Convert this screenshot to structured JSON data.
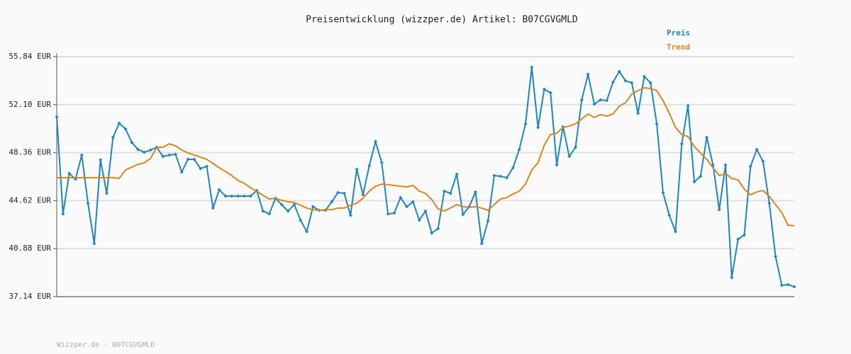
{
  "chart_data": {
    "type": "line",
    "title": "Preisentwicklung (wizzper.de) Artikel: B07CGVGMLD",
    "footer": "Wizzper.de - B07CGVGMLD",
    "ylim": [
      37.14,
      55.84
    ],
    "yticks": [
      {
        "value": 37.14,
        "label": "37.14 EUR"
      },
      {
        "value": 40.88,
        "label": "40.88 EUR"
      },
      {
        "value": 44.62,
        "label": "44.62 EUR"
      },
      {
        "value": 48.36,
        "label": "48.36 EUR"
      },
      {
        "value": 52.1,
        "label": "52.10 EUR"
      },
      {
        "value": 55.84,
        "label": "55.84 EUR"
      }
    ],
    "grid": true,
    "legend": "top-right",
    "series": [
      {
        "name": "Preis",
        "color": "#1f85c2",
        "markers": true,
        "values": [
          51.15,
          43.59,
          46.74,
          46.3,
          48.17,
          44.42,
          41.28,
          47.79,
          45.19,
          49.55,
          50.65,
          50.21,
          49.16,
          48.61,
          48.39,
          48.56,
          48.78,
          48.06,
          48.17,
          48.23,
          46.85,
          47.84,
          47.84,
          47.12,
          47.29,
          44.04,
          45.47,
          44.97,
          44.97,
          44.97,
          44.97,
          44.97,
          45.41,
          43.81,
          43.59,
          44.81,
          44.31,
          43.81,
          44.31,
          43.1,
          42.21,
          44.15,
          43.87,
          43.87,
          44.53,
          45.25,
          45.19,
          43.48,
          47.07,
          45.08,
          47.34,
          49.22,
          47.57,
          43.59,
          43.65,
          44.86,
          44.15,
          44.53,
          43.1,
          43.81,
          42.1,
          42.44,
          45.36,
          45.19,
          46.68,
          43.54,
          44.15,
          45.3,
          41.28,
          43.04,
          46.57,
          46.52,
          46.41,
          47.18,
          48.61,
          50.6,
          55.01,
          50.32,
          53.3,
          53.03,
          47.4,
          50.38,
          48.06,
          48.78,
          52.47,
          54.46,
          52.14,
          52.47,
          52.42,
          53.85,
          54.68,
          53.96,
          53.8,
          51.43,
          54.29,
          53.8,
          50.6,
          45.25,
          43.48,
          42.21,
          49.05,
          52.03,
          46.08,
          46.52,
          49.55,
          47.4,
          43.92,
          47.4,
          38.63,
          41.61,
          41.94,
          47.29,
          48.61,
          47.68,
          44.42,
          40.28,
          38.02,
          38.08,
          37.91
        ]
      },
      {
        "name": "Trend",
        "color": "#d9861c",
        "markers": false,
        "values": [
          46.41,
          46.41,
          46.41,
          46.41,
          46.41,
          46.41,
          46.41,
          46.41,
          46.41,
          46.41,
          46.35,
          47.01,
          47.23,
          47.45,
          47.57,
          47.9,
          48.78,
          48.78,
          49.05,
          48.89,
          48.56,
          48.34,
          48.17,
          48.01,
          47.84,
          47.51,
          47.18,
          46.9,
          46.57,
          46.19,
          45.97,
          45.63,
          45.36,
          45.03,
          44.75,
          44.81,
          44.64,
          44.53,
          44.48,
          44.26,
          44.04,
          43.92,
          43.87,
          43.92,
          43.92,
          44.04,
          44.04,
          44.26,
          44.42,
          44.81,
          45.36,
          45.74,
          45.91,
          45.86,
          45.8,
          45.74,
          45.69,
          45.8,
          45.36,
          45.19,
          44.7,
          43.98,
          43.81,
          44.04,
          44.31,
          44.15,
          44.09,
          44.15,
          44.04,
          43.87,
          44.31,
          44.75,
          44.86,
          45.14,
          45.36,
          45.91,
          47.01,
          47.57,
          48.94,
          49.77,
          49.88,
          50.32,
          50.43,
          50.6,
          50.99,
          51.37,
          51.1,
          51.32,
          51.21,
          51.37,
          51.98,
          52.25,
          52.92,
          53.19,
          53.41,
          53.36,
          53.19,
          52.42,
          51.43,
          50.32,
          49.77,
          49.61,
          48.83,
          48.34,
          47.84,
          47.18,
          46.57,
          46.74,
          46.35,
          46.24,
          45.52,
          45.08,
          45.3,
          45.41,
          44.97,
          44.31,
          43.7,
          42.71,
          42.66
        ]
      }
    ]
  }
}
